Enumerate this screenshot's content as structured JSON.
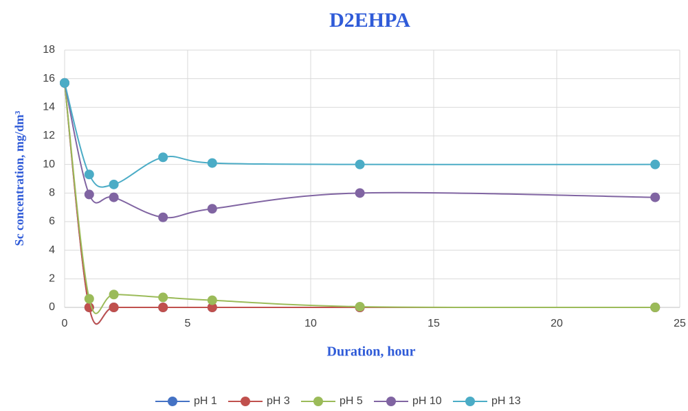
{
  "chart_data": {
    "type": "line",
    "title": "D2EHPA",
    "x_label": "Duration, hour",
    "y_label": "Sc concentration, mg/dm³",
    "x": [
      0,
      1,
      2,
      4,
      6,
      12,
      24
    ],
    "series": [
      {
        "name": "pH 1",
        "color": "#4472c4",
        "values": [
          15.7,
          0,
          0,
          0,
          0,
          0,
          0
        ]
      },
      {
        "name": "pH 3",
        "color": "#c0504d",
        "values": [
          15.7,
          0,
          0,
          0,
          0,
          0,
          0
        ]
      },
      {
        "name": "pH 5",
        "color": "#9bbb59",
        "values": [
          15.7,
          0.6,
          0.9,
          0.7,
          0.5,
          0.05,
          0
        ]
      },
      {
        "name": "pH 10",
        "color": "#8064a2",
        "values": [
          15.7,
          7.9,
          7.7,
          6.3,
          6.9,
          8.0,
          7.7
        ]
      },
      {
        "name": "pH 13",
        "color": "#4bacc6",
        "values": [
          15.7,
          9.3,
          8.6,
          10.5,
          10.1,
          10.0,
          10.0
        ]
      }
    ],
    "xlim": [
      0,
      25
    ],
    "xticks": [
      0,
      5,
      10,
      15,
      20,
      25
    ],
    "ylim": [
      0,
      18
    ],
    "yticks": [
      0,
      2,
      4,
      6,
      8,
      10,
      12,
      14,
      16,
      18
    ],
    "grid": true,
    "smooth": true,
    "legend": "bottom"
  }
}
